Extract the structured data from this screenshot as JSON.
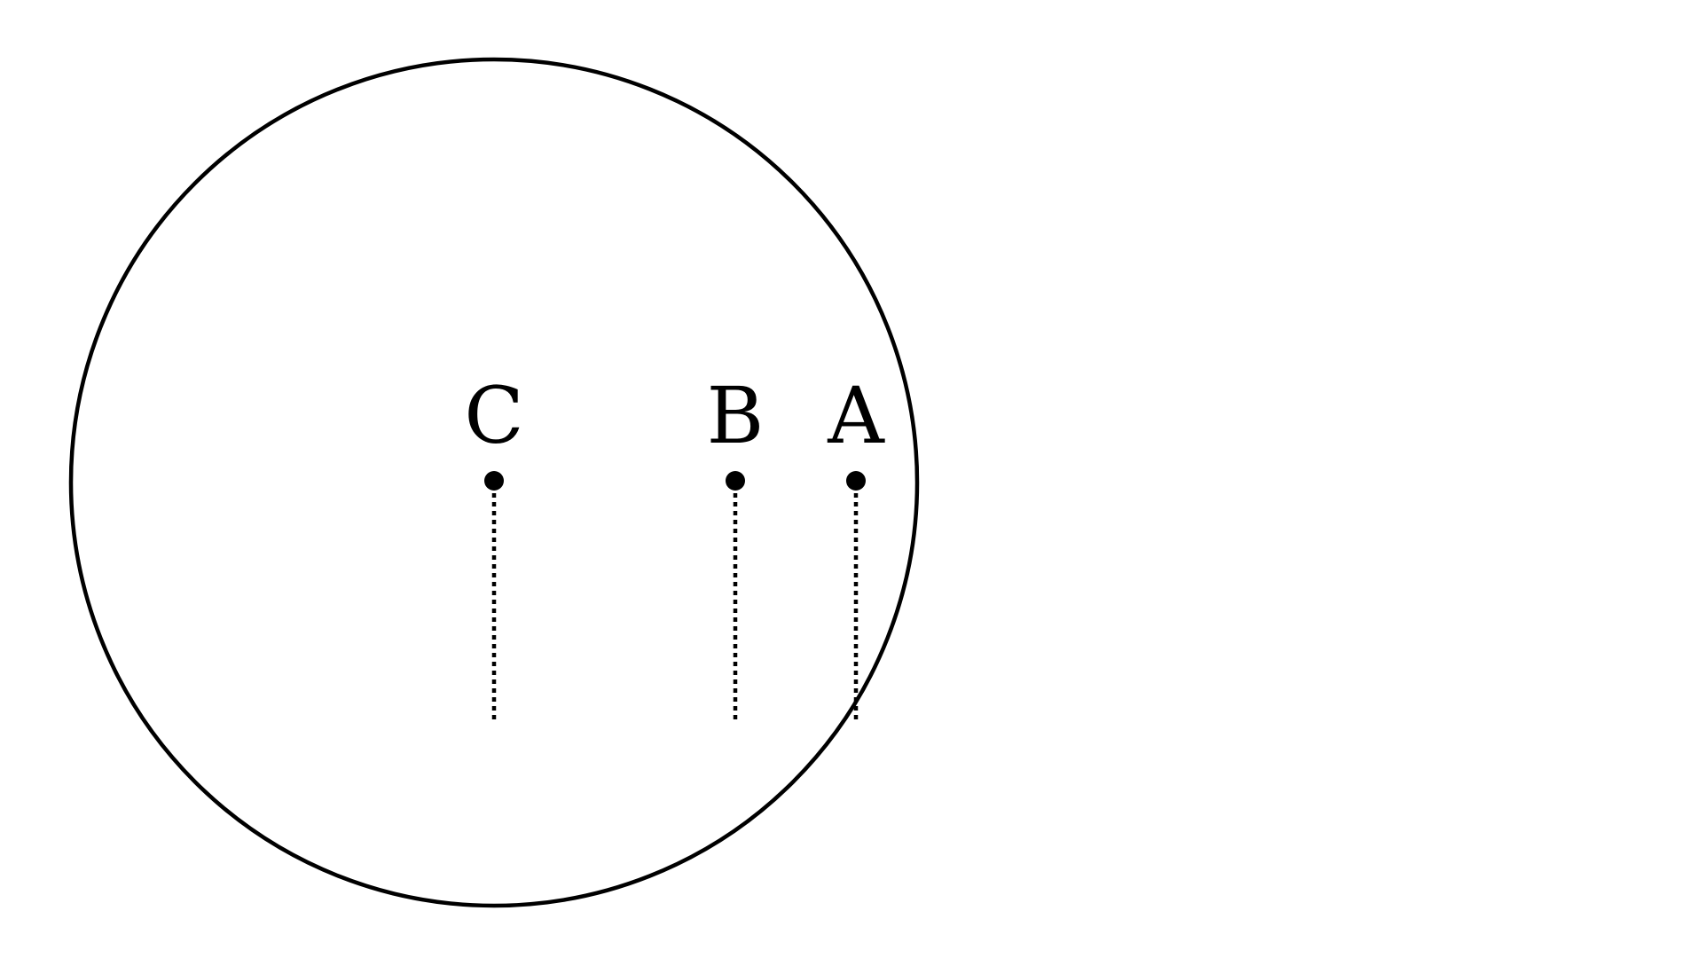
{
  "colors": {
    "ink": "#000000",
    "background": "#ffffff"
  },
  "points": [
    {
      "id": "c",
      "label": "C"
    },
    {
      "id": "b",
      "label": "B"
    },
    {
      "id": "a",
      "label": "A"
    }
  ]
}
